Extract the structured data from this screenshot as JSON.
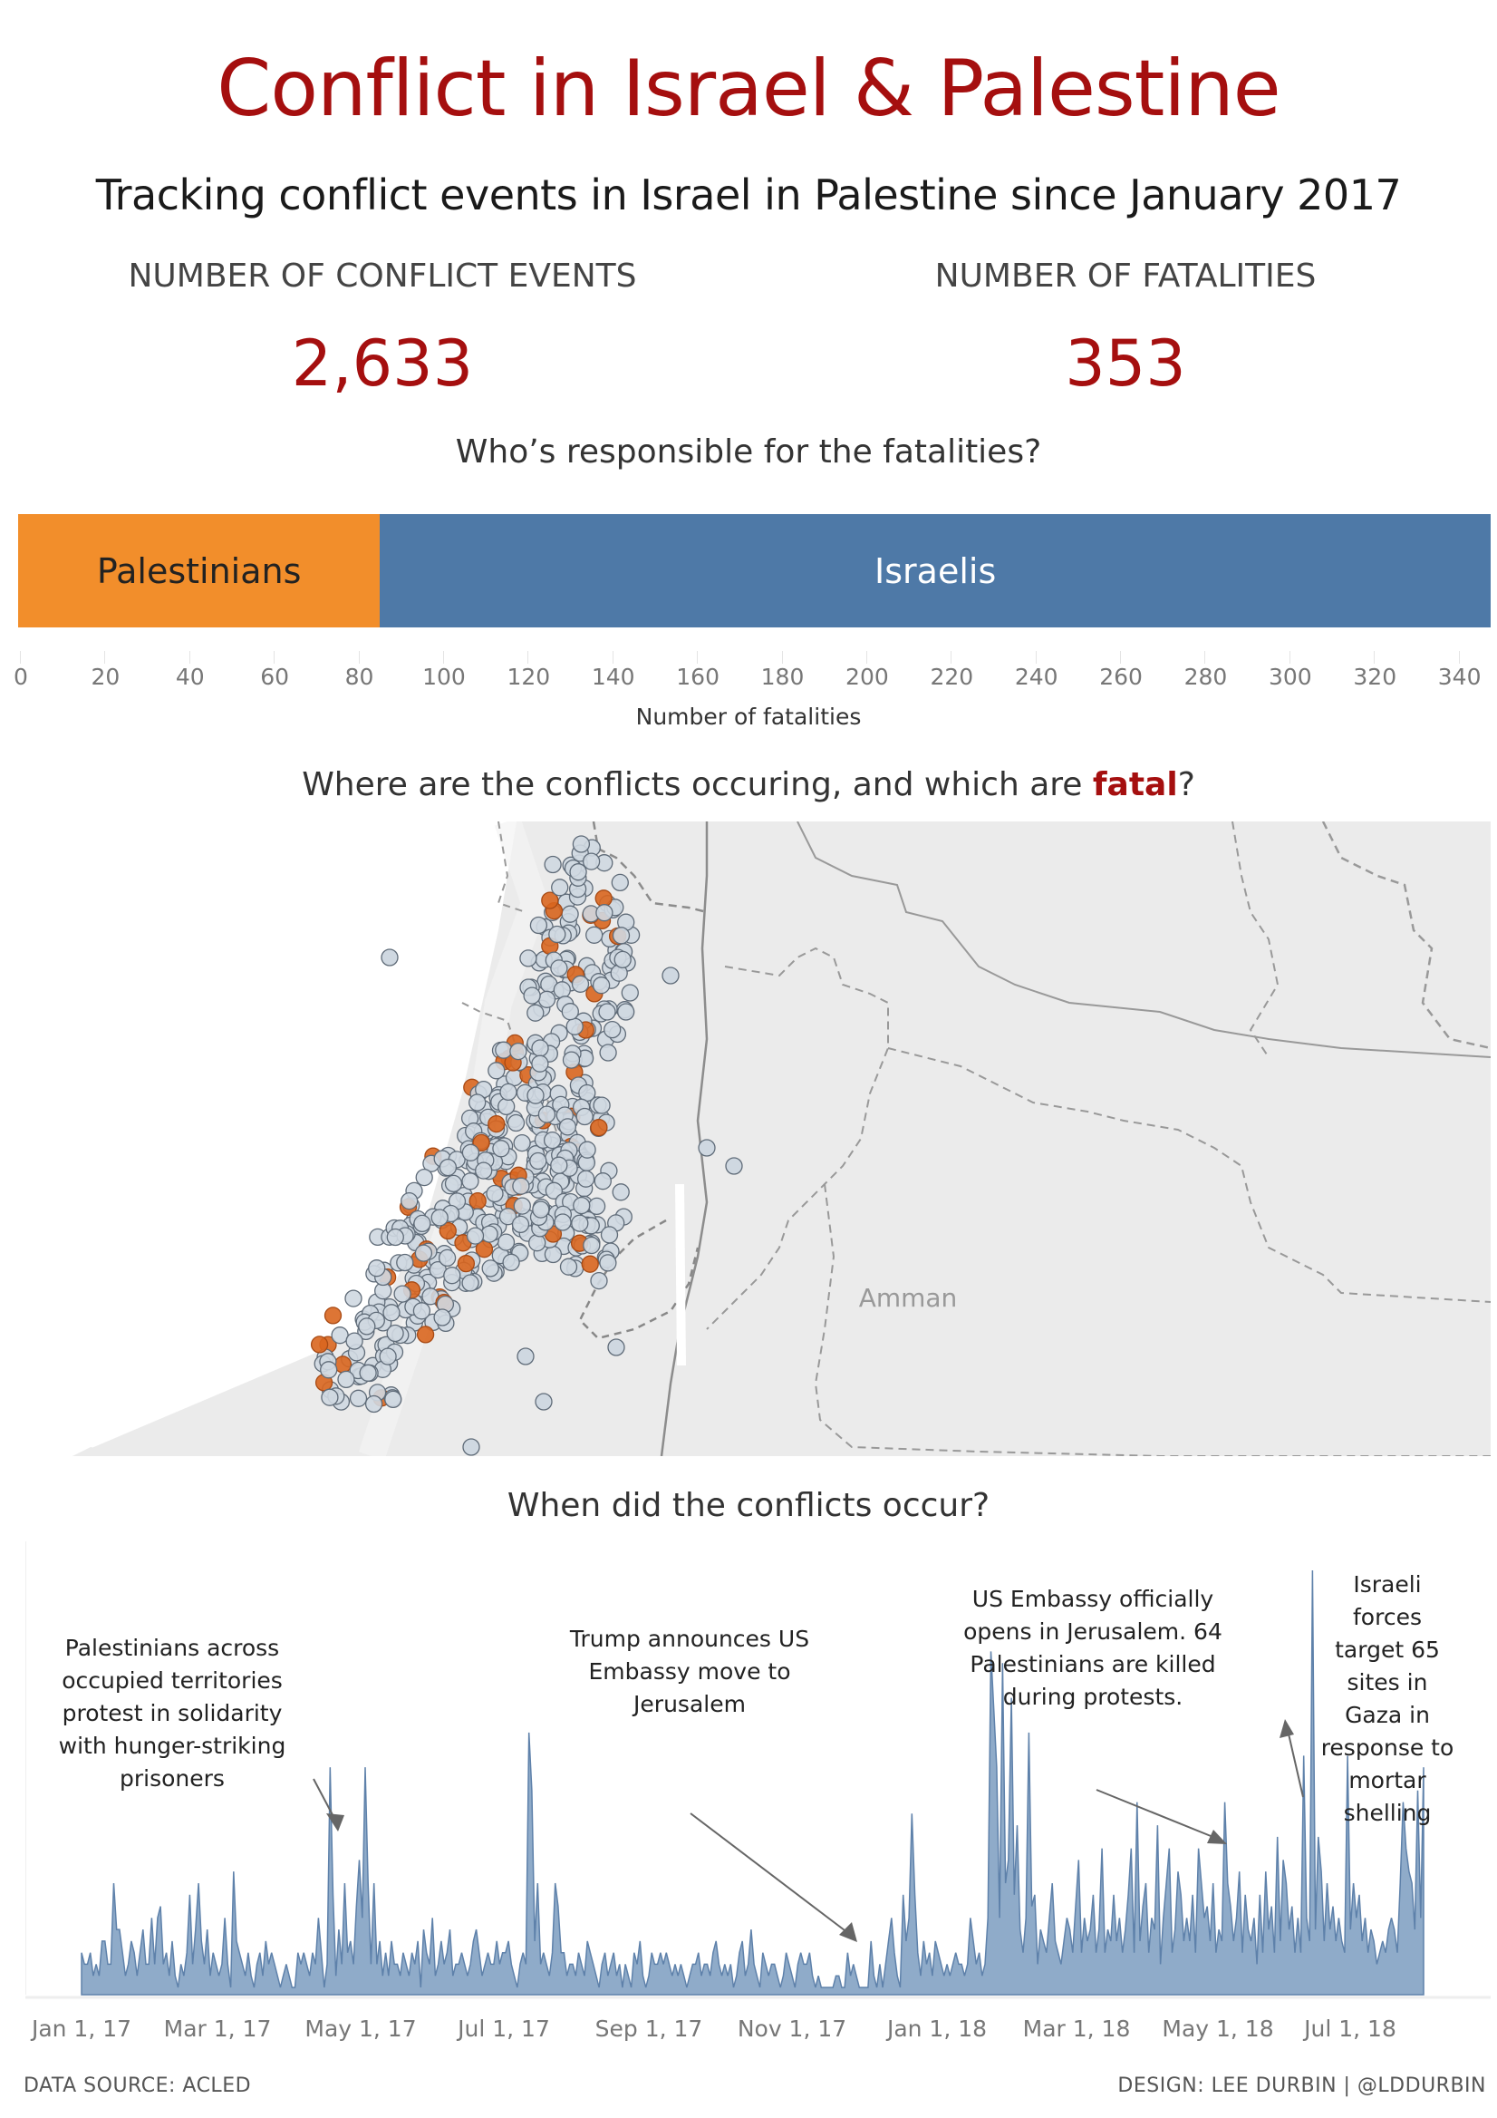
{
  "header": {
    "title": "Conflict in Israel & Palestine",
    "subtitle": "Tracking conflict events in Israel in Palestine since January 2017"
  },
  "kpis": {
    "events_label": "NUMBER OF CONFLICT EVENTS",
    "events_value": "2,633",
    "fatalities_label": "NUMBER OF FATALITIES",
    "fatalities_value": "353"
  },
  "responsibility": {
    "title": "Who’s responsible for the fatalities?",
    "xlabel": "Number of fatalities"
  },
  "map": {
    "title_prefix": "Where are the conflicts occuring, and which are ",
    "title_highlight": "fatal",
    "title_suffix": "?",
    "city_label": "Amman",
    "colors": {
      "non_fatal": "#cfd8e1",
      "fatal": "#d9661f",
      "land": "#ececec",
      "border": "#8c8c8c"
    }
  },
  "timeline": {
    "title": "When did the conflicts occur?",
    "annotations": [
      {
        "text": "Palestinians across occupied territories protest in solidarity with hunger-striking prisoners"
      },
      {
        "text": "Trump announces US Embassy move to Jerusalem"
      },
      {
        "text": "US Embassy officially opens in Jerusalem. 64 Palestinians are killed during protests."
      },
      {
        "text": "Israeli forces target 65 sites in Gaza in response to mortar shelling"
      }
    ]
  },
  "footer": {
    "left": "DATA SOURCE: ACLED",
    "right": "DESIGN: LEE DURBIN | @LDDURBIN"
  },
  "colors": {
    "title_red": "#a50f0f",
    "palestinians": "#f28e2b",
    "israelis": "#4e79a7",
    "area_fill": "#8fabc9",
    "area_line": "#5e81aa"
  },
  "chart_data": [
    {
      "type": "bar",
      "title": "Who’s responsible for the fatalities?",
      "orientation": "horizontal-stacked",
      "categories": [
        "Palestinians",
        "Israelis"
      ],
      "values": [
        86,
        267
      ],
      "xlabel": "Number of fatalities",
      "ylabel": "",
      "xlim": [
        0,
        350
      ],
      "x_ticks": [
        "0",
        "20",
        "40",
        "60",
        "80",
        "100",
        "120",
        "140",
        "160",
        "180",
        "200",
        "220",
        "240",
        "260",
        "280",
        "300",
        "320",
        "340"
      ]
    },
    {
      "type": "scatter",
      "title": "Where are the conflicts occuring, and which are fatal?",
      "legend": [
        "Non-fatal events (grey)",
        "Fatal events (orange)"
      ],
      "annotations": [
        "Amman"
      ]
    },
    {
      "type": "area",
      "title": "When did the conflicts occur?",
      "xlabel": "",
      "ylabel": "",
      "x_ticks": [
        "Jan 1, 17",
        "Mar 1, 17",
        "May 1, 17",
        "Jul 1, 17",
        "Sep 1, 17",
        "Nov 1, 17",
        "Jan 1, 18",
        "Mar 1, 18",
        "May 1, 18",
        "Jul 1, 18"
      ],
      "x_range": [
        "Jan 1, 17",
        "Aug 2018"
      ],
      "values": [
        3,
        2,
        2,
        3,
        1,
        2,
        1,
        4,
        4,
        2,
        2,
        9,
        5,
        5,
        3,
        1,
        2,
        4,
        3,
        1,
        3,
        5,
        2,
        2,
        6,
        2,
        6,
        7,
        2,
        3,
        1,
        4,
        1,
        0,
        2,
        1,
        3,
        8,
        2,
        5,
        9,
        4,
        2,
        5,
        1,
        3,
        2,
        1,
        2,
        6,
        2,
        0,
        10,
        4,
        3,
        2,
        1,
        3,
        1,
        0,
        2,
        3,
        1,
        4,
        2,
        3,
        2,
        1,
        0,
        1,
        2,
        1,
        0,
        0,
        3,
        2,
        3,
        2,
        1,
        3,
        2,
        6,
        3,
        0,
        2,
        19,
        8,
        1,
        5,
        2,
        9,
        3,
        4,
        2,
        7,
        11,
        6,
        19,
        9,
        2,
        9,
        2,
        4,
        1,
        3,
        1,
        4,
        2,
        2,
        1,
        3,
        2,
        1,
        3,
        2,
        4,
        0,
        5,
        3,
        2,
        6,
        1,
        2,
        4,
        2,
        3,
        5,
        1,
        2,
        2,
        3,
        2,
        1,
        2,
        4,
        5,
        3,
        1,
        2,
        3,
        2,
        2,
        4,
        2,
        3,
        3,
        4,
        2,
        1,
        0,
        2,
        3,
        2,
        22,
        17,
        4,
        9,
        2,
        3,
        2,
        1,
        3,
        9,
        7,
        3,
        3,
        1,
        2,
        2,
        1,
        3,
        2,
        1,
        4,
        3,
        2,
        1,
        0,
        2,
        3,
        1,
        2,
        3,
        1,
        2,
        0,
        2,
        1,
        0,
        3,
        2,
        4,
        1,
        0,
        1,
        3,
        2,
        2,
        3,
        2,
        3,
        2,
        1,
        2,
        1,
        2,
        1,
        0,
        1,
        2,
        2,
        3,
        1,
        2,
        2,
        1,
        3,
        4,
        2,
        1,
        2,
        1,
        2,
        0,
        1,
        3,
        4,
        1,
        2,
        5,
        2,
        1,
        0,
        3,
        2,
        1,
        2,
        2,
        1,
        0,
        1,
        3,
        2,
        1,
        0,
        2,
        3,
        2,
        2,
        3,
        1,
        0,
        1,
        0,
        0,
        0,
        0,
        0,
        1,
        1,
        0,
        0,
        3,
        1,
        2,
        1,
        0,
        0,
        0,
        0,
        4,
        1,
        0,
        2,
        0,
        2,
        4,
        6,
        3,
        1,
        0,
        8,
        4,
        6,
        15,
        8,
        3,
        1,
        4,
        2,
        3,
        1,
        4,
        3,
        2,
        1,
        2,
        1,
        2,
        3,
        2,
        2,
        1,
        2,
        6,
        4,
        2,
        3,
        1,
        2,
        6,
        29,
        24,
        19,
        6,
        28,
        9,
        11,
        25,
        8,
        14,
        5,
        3,
        6,
        22,
        7,
        8,
        2,
        5,
        4,
        3,
        6,
        9,
        4,
        3,
        2,
        4,
        6,
        5,
        3,
        7,
        11,
        3,
        6,
        4,
        5,
        8,
        3,
        5,
        12,
        3,
        5,
        4,
        8,
        4,
        6,
        3,
        5,
        8,
        12,
        3,
        16,
        4,
        7,
        9,
        3,
        6,
        5,
        14,
        2,
        6,
        9,
        12,
        3,
        5,
        10,
        8,
        4,
        6,
        4,
        8,
        3,
        12,
        9,
        6,
        7,
        4,
        9,
        3,
        5,
        4,
        16,
        9,
        7,
        4,
        6,
        10,
        3,
        8,
        5,
        4,
        6,
        2,
        8,
        3,
        10,
        5,
        7,
        3,
        13,
        4,
        11,
        9,
        5,
        7,
        3,
        6,
        3,
        20,
        6,
        4,
        36,
        5,
        13,
        10,
        4,
        9,
        5,
        7,
        4,
        6,
        4,
        3,
        20,
        5,
        9,
        6,
        8,
        4,
        6,
        3,
        5,
        4,
        2,
        3,
        4,
        3,
        5,
        6,
        5,
        3,
        9,
        16,
        12,
        10,
        9,
        5,
        17,
        6,
        19
      ]
    }
  ]
}
